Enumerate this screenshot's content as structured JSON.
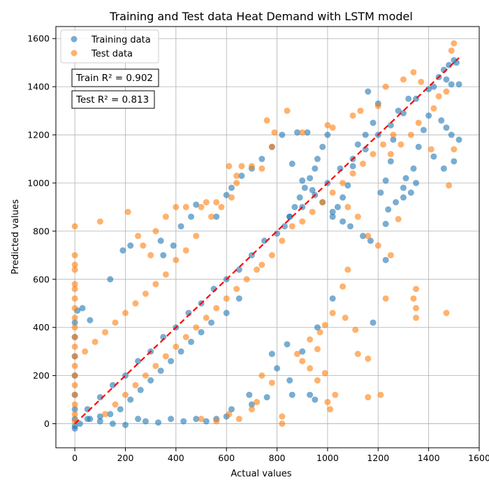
{
  "chart_data": {
    "type": "scatter",
    "title": "Training and Test data Heat Demand with LSTM model",
    "xlabel": "Actual values",
    "ylabel": "Predicted values",
    "xlim": [
      -75,
      1600
    ],
    "ylim": [
      -100,
      1650
    ],
    "xticks": [
      0,
      200,
      400,
      600,
      800,
      1000,
      1200,
      1400,
      1600
    ],
    "yticks": [
      0,
      200,
      400,
      600,
      800,
      1000,
      1200,
      1400,
      1600
    ],
    "grid": true,
    "legend_position": "top-left",
    "reference_line": {
      "style": "dashed",
      "color": "#ff0000",
      "from": [
        0,
        0
      ],
      "to": [
        1520,
        1520
      ]
    },
    "annotations": [
      "Train R² = 0.902",
      "Test R² = 0.813"
    ],
    "series": [
      {
        "name": "Training data",
        "color": "#1f77b4",
        "points": [
          [
            1500,
            1510
          ],
          [
            1480,
            1490
          ],
          [
            1460,
            1470
          ],
          [
            1510,
            1500
          ],
          [
            1470,
            1430
          ],
          [
            1490,
            1410
          ],
          [
            1520,
            1410
          ],
          [
            1440,
            1440
          ],
          [
            1420,
            1400
          ],
          [
            1450,
            1260
          ],
          [
            1470,
            1230
          ],
          [
            1490,
            1200
          ],
          [
            1520,
            1180
          ],
          [
            1500,
            1090
          ],
          [
            1400,
            1280
          ],
          [
            1380,
            1220
          ],
          [
            1360,
            1150
          ],
          [
            1340,
            1060
          ],
          [
            1310,
            1020
          ],
          [
            1300,
            980
          ],
          [
            1420,
            1110
          ],
          [
            1460,
            1060
          ],
          [
            1320,
            1350
          ],
          [
            1280,
            1300
          ],
          [
            1260,
            1180
          ],
          [
            1250,
            1090
          ],
          [
            1230,
            1010
          ],
          [
            1210,
            960
          ],
          [
            1180,
            1250
          ],
          [
            1150,
            1200
          ],
          [
            1160,
            1380
          ],
          [
            1200,
            1330
          ],
          [
            1120,
            1160
          ],
          [
            1100,
            1070
          ],
          [
            1080,
            990
          ],
          [
            1060,
            940
          ],
          [
            1040,
            900
          ],
          [
            1020,
            860
          ],
          [
            1000,
            1200
          ],
          [
            980,
            1150
          ],
          [
            960,
            1100
          ],
          [
            950,
            1060
          ],
          [
            930,
            1020
          ],
          [
            910,
            980
          ],
          [
            890,
            940
          ],
          [
            870,
            900
          ],
          [
            850,
            860
          ],
          [
            830,
            820
          ],
          [
            880,
            1210
          ],
          [
            920,
            1210
          ],
          [
            1230,
            680
          ],
          [
            1180,
            420
          ],
          [
            1020,
            520
          ],
          [
            960,
            400
          ],
          [
            900,
            300
          ],
          [
            850,
            180
          ],
          [
            950,
            100
          ],
          [
            930,
            120
          ],
          [
            860,
            120
          ],
          [
            840,
            330
          ],
          [
            800,
            230
          ],
          [
            780,
            290
          ],
          [
            760,
            110
          ],
          [
            700,
            80
          ],
          [
            690,
            120
          ],
          [
            620,
            60
          ],
          [
            600,
            30
          ],
          [
            560,
            20
          ],
          [
            520,
            10
          ],
          [
            480,
            20
          ],
          [
            430,
            10
          ],
          [
            380,
            20
          ],
          [
            330,
            5
          ],
          [
            280,
            10
          ],
          [
            250,
            20
          ],
          [
            200,
            -5
          ],
          [
            150,
            0
          ],
          [
            100,
            10
          ],
          [
            50,
            20
          ],
          [
            20,
            0
          ],
          [
            0,
            -20
          ],
          [
            0,
            -10
          ],
          [
            0,
            20
          ],
          [
            0,
            60
          ],
          [
            0,
            120
          ],
          [
            0,
            200
          ],
          [
            0,
            280
          ],
          [
            0,
            360
          ],
          [
            0,
            420
          ],
          [
            10,
            470
          ],
          [
            30,
            480
          ],
          [
            60,
            430
          ],
          [
            140,
            600
          ],
          [
            190,
            720
          ],
          [
            220,
            740
          ],
          [
            340,
            760
          ],
          [
            350,
            700
          ],
          [
            390,
            740
          ],
          [
            420,
            820
          ],
          [
            460,
            860
          ],
          [
            480,
            910
          ],
          [
            560,
            860
          ],
          [
            600,
            950
          ],
          [
            620,
            980
          ],
          [
            660,
            1030
          ],
          [
            700,
            1060
          ],
          [
            740,
            1100
          ],
          [
            780,
            1150
          ],
          [
            820,
            1200
          ],
          [
            860,
            1080
          ],
          [
            900,
            1010
          ],
          [
            940,
            970
          ],
          [
            980,
            920
          ],
          [
            1020,
            880
          ],
          [
            1060,
            840
          ],
          [
            1090,
            820
          ],
          [
            1140,
            780
          ],
          [
            1170,
            760
          ],
          [
            1230,
            830
          ],
          [
            1240,
            890
          ],
          [
            1270,
            920
          ],
          [
            1300,
            940
          ],
          [
            1330,
            960
          ],
          [
            1350,
            1000
          ],
          [
            650,
            520
          ],
          [
            600,
            460
          ],
          [
            540,
            420
          ],
          [
            500,
            380
          ],
          [
            460,
            340
          ],
          [
            420,
            300
          ],
          [
            380,
            260
          ],
          [
            340,
            220
          ],
          [
            300,
            180
          ],
          [
            260,
            140
          ],
          [
            220,
            100
          ],
          [
            180,
            60
          ],
          [
            140,
            40
          ],
          [
            100,
            30
          ],
          [
            60,
            20
          ],
          [
            700,
            700
          ],
          [
            650,
            640
          ],
          [
            600,
            600
          ],
          [
            550,
            560
          ],
          [
            500,
            500
          ],
          [
            450,
            460
          ],
          [
            400,
            400
          ],
          [
            350,
            360
          ],
          [
            300,
            300
          ],
          [
            250,
            260
          ],
          [
            200,
            200
          ],
          [
            150,
            160
          ],
          [
            100,
            110
          ],
          [
            50,
            60
          ],
          [
            750,
            760
          ],
          [
            800,
            790
          ],
          [
            850,
            860
          ],
          [
            900,
            900
          ],
          [
            950,
            950
          ],
          [
            1000,
            1000
          ],
          [
            1050,
            1060
          ],
          [
            1100,
            1100
          ],
          [
            1150,
            1140
          ],
          [
            1200,
            1200
          ],
          [
            1250,
            1240
          ],
          [
            1300,
            1290
          ],
          [
            1350,
            1350
          ],
          [
            1400,
            1390
          ]
        ]
      },
      {
        "name": "Test data",
        "color": "#ff7f0e",
        "points": [
          [
            1500,
            1580
          ],
          [
            1490,
            1550
          ],
          [
            1340,
            1460
          ],
          [
            1470,
            1380
          ],
          [
            1440,
            1360
          ],
          [
            1420,
            1310
          ],
          [
            1370,
            1420
          ],
          [
            1360,
            1250
          ],
          [
            1330,
            1200
          ],
          [
            1290,
            1160
          ],
          [
            1250,
            1120
          ],
          [
            1410,
            1140
          ],
          [
            1500,
            1140
          ],
          [
            1480,
            990
          ],
          [
            1350,
            560
          ],
          [
            1340,
            520
          ],
          [
            1350,
            480
          ],
          [
            1350,
            440
          ],
          [
            1470,
            460
          ],
          [
            1230,
            520
          ],
          [
            1210,
            120
          ],
          [
            1160,
            110
          ],
          [
            1160,
            270
          ],
          [
            1120,
            290
          ],
          [
            1110,
            390
          ],
          [
            1070,
            440
          ],
          [
            1030,
            120
          ],
          [
            1010,
            60
          ],
          [
            1000,
            90
          ],
          [
            990,
            210
          ],
          [
            960,
            180
          ],
          [
            930,
            230
          ],
          [
            900,
            260
          ],
          [
            880,
            290
          ],
          [
            1060,
            570
          ],
          [
            1080,
            640
          ],
          [
            1020,
            460
          ],
          [
            990,
            410
          ],
          [
            970,
            380
          ],
          [
            930,
            350
          ],
          [
            960,
            310
          ],
          [
            820,
            0
          ],
          [
            820,
            30
          ],
          [
            780,
            170
          ],
          [
            740,
            200
          ],
          [
            720,
            90
          ],
          [
            700,
            60
          ],
          [
            650,
            20
          ],
          [
            610,
            40
          ],
          [
            560,
            10
          ],
          [
            500,
            20
          ],
          [
            0,
            820
          ],
          [
            0,
            700
          ],
          [
            0,
            660
          ],
          [
            0,
            640
          ],
          [
            0,
            580
          ],
          [
            0,
            560
          ],
          [
            0,
            520
          ],
          [
            0,
            480
          ],
          [
            0,
            440
          ],
          [
            0,
            400
          ],
          [
            0,
            360
          ],
          [
            0,
            320
          ],
          [
            0,
            280
          ],
          [
            0,
            240
          ],
          [
            0,
            200
          ],
          [
            0,
            160
          ],
          [
            0,
            120
          ],
          [
            0,
            80
          ],
          [
            0,
            40
          ],
          [
            0,
            10
          ],
          [
            100,
            840
          ],
          [
            210,
            880
          ],
          [
            250,
            780
          ],
          [
            270,
            740
          ],
          [
            300,
            700
          ],
          [
            320,
            800
          ],
          [
            360,
            860
          ],
          [
            400,
            900
          ],
          [
            440,
            900
          ],
          [
            500,
            900
          ],
          [
            520,
            920
          ],
          [
            560,
            920
          ],
          [
            610,
            1070
          ],
          [
            640,
            1000
          ],
          [
            660,
            1070
          ],
          [
            700,
            1070
          ],
          [
            740,
            1060
          ],
          [
            780,
            1150
          ],
          [
            790,
            1210
          ],
          [
            760,
            1260
          ],
          [
            840,
            1300
          ],
          [
            900,
            1210
          ],
          [
            1000,
            1240
          ],
          [
            1020,
            1230
          ],
          [
            1100,
            1280
          ],
          [
            1130,
            1300
          ],
          [
            1200,
            1320
          ],
          [
            1230,
            1400
          ],
          [
            1300,
            1430
          ],
          [
            1080,
            900
          ],
          [
            1120,
            860
          ],
          [
            1160,
            780
          ],
          [
            1200,
            740
          ],
          [
            1250,
            700
          ],
          [
            1280,
            850
          ],
          [
            640,
            1030
          ],
          [
            620,
            940
          ],
          [
            580,
            900
          ],
          [
            540,
            860
          ],
          [
            480,
            780
          ],
          [
            440,
            720
          ],
          [
            400,
            680
          ],
          [
            360,
            620
          ],
          [
            320,
            580
          ],
          [
            280,
            540
          ],
          [
            240,
            500
          ],
          [
            200,
            460
          ],
          [
            160,
            420
          ],
          [
            120,
            380
          ],
          [
            80,
            340
          ],
          [
            40,
            300
          ],
          [
            720,
            640
          ],
          [
            680,
            600
          ],
          [
            640,
            560
          ],
          [
            600,
            520
          ],
          [
            560,
            480
          ],
          [
            520,
            440
          ],
          [
            480,
            400
          ],
          [
            440,
            360
          ],
          [
            400,
            320
          ],
          [
            360,
            280
          ],
          [
            320,
            240
          ],
          [
            280,
            200
          ],
          [
            240,
            160
          ],
          [
            200,
            120
          ],
          [
            160,
            80
          ],
          [
            120,
            40
          ],
          [
            860,
            820
          ],
          [
            820,
            760
          ],
          [
            780,
            700
          ],
          [
            740,
            660
          ],
          [
            900,
            840
          ],
          [
            940,
            880
          ],
          [
            980,
            920
          ],
          [
            1020,
            960
          ],
          [
            1060,
            1000
          ],
          [
            1100,
            1040
          ],
          [
            1140,
            1080
          ],
          [
            1180,
            1120
          ],
          [
            1220,
            1160
          ],
          [
            1260,
            1200
          ]
        ]
      }
    ]
  }
}
